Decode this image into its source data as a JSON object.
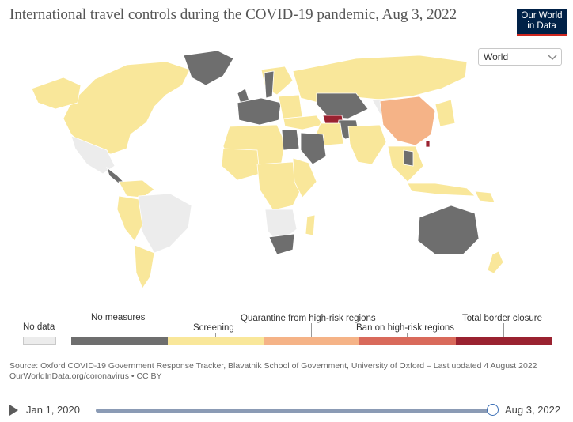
{
  "header": {
    "title": "International travel controls during the COVID-19 pandemic, Aug 3, 2022",
    "logo_line1": "Our World",
    "logo_line2": "in Data"
  },
  "region_selector": {
    "value": "World",
    "icon": "chevron-down-icon"
  },
  "colors": {
    "no_data": "#ececec",
    "no_measures": "#6e6e6e",
    "screening": "#f9e79a",
    "quarantine": "#f5b387",
    "ban": "#d96a5b",
    "closure": "#9a2230",
    "ocean": "#ffffff",
    "border": "#ffffff"
  },
  "legend": {
    "no_data": "No data",
    "items": [
      {
        "key": "no_measures",
        "label": "No measures"
      },
      {
        "key": "screening",
        "label": "Screening"
      },
      {
        "key": "quarantine",
        "label": "Quarantine from high-risk regions"
      },
      {
        "key": "ban",
        "label": "Ban on high-risk regions"
      },
      {
        "key": "closure",
        "label": "Total border closure"
      }
    ]
  },
  "source": {
    "line1": "Source: Oxford COVID-19 Government Response Tracker, Blavatnik School of Government, University of Oxford – Last updated 4 August 2022",
    "line2": "OurWorldInData.org/coronavirus • CC BY"
  },
  "timeline": {
    "start_label": "Jan 1, 2020",
    "end_label": "Aug 3, 2022",
    "position": 1.0
  }
}
